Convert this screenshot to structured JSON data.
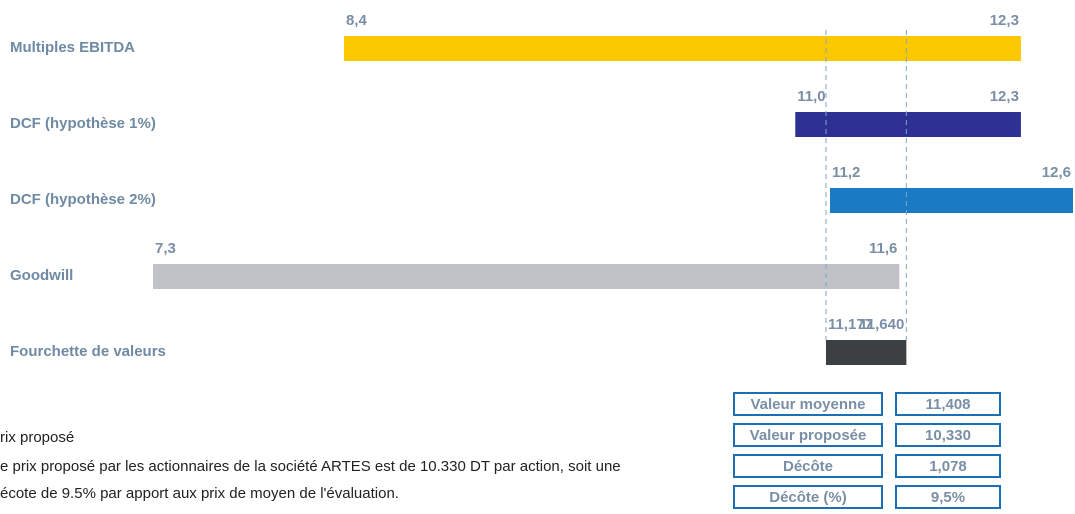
{
  "chart_data": {
    "type": "range_bar",
    "categories": [
      "Multiples EBITDA",
      "DCF (hypothèse 1%)",
      "DCF (hypothèse 2%)",
      "Goodwill",
      "Fourchette de valeurs"
    ],
    "low": [
      8.4,
      11.0,
      11.2,
      7.3,
      11.177
    ],
    "high": [
      12.3,
      12.3,
      12.6,
      11.6,
      11.64
    ],
    "low_labels": [
      "8,4",
      "11,0",
      "11,2",
      "7,3",
      "11,177"
    ],
    "high_labels": [
      "12,3",
      "12,3",
      "12,6",
      "11,6",
      "11,640"
    ],
    "colors": [
      "#fcc800",
      "#2e3192",
      "#1a7bc4",
      "#c0c2c8",
      "#3d4043"
    ]
  },
  "table": {
    "rows": [
      [
        "Valeur moyenne",
        "11,408"
      ],
      [
        "Valeur proposée",
        "10,330"
      ],
      [
        "Décôte",
        "1,078"
      ],
      [
        "Décôte (%)",
        "9,5%"
      ]
    ]
  },
  "text": {
    "heading": "rix proposé",
    "lines": [
      "e prix proposé par les actionnaires de la société ARTES est de 10.330 DT par action, soit une",
      "écote de 9.5% par apport aux prix de moyen de l'évaluation."
    ]
  }
}
